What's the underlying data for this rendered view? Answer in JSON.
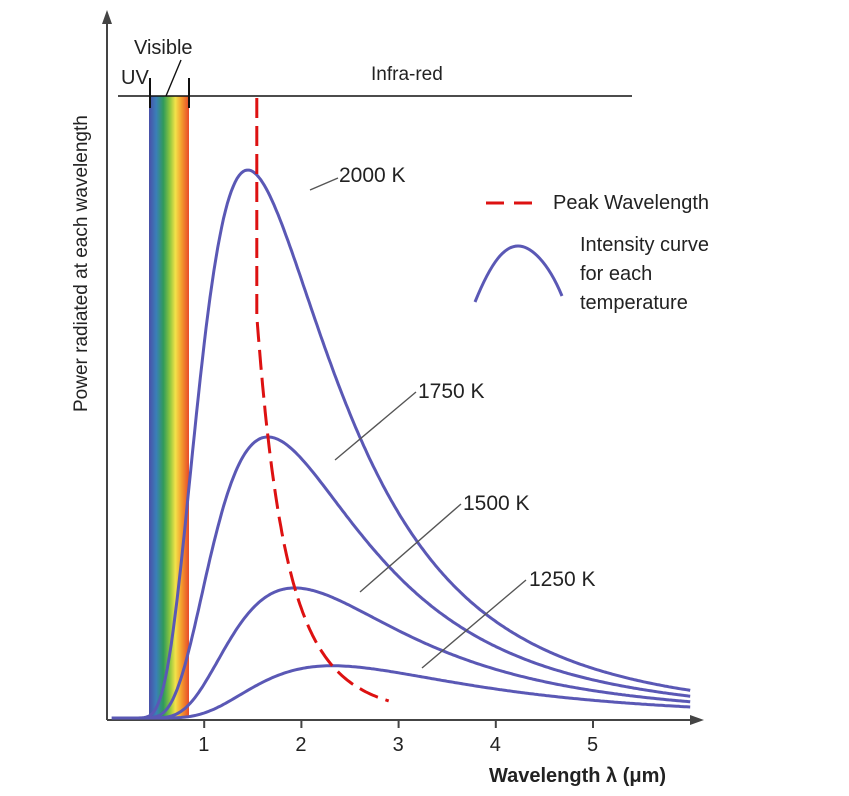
{
  "chart_data": {
    "type": "line",
    "title": "",
    "xlabel": "Wavelength λ (μm)",
    "ylabel": "Power radiated at each wavelength",
    "xlim": [
      0,
      6
    ],
    "ylim": [
      0,
      1.1
    ],
    "x_ticks": [
      "1",
      "2",
      "3",
      "4",
      "5"
    ],
    "x_tick_values": [
      1,
      2,
      3,
      4,
      5
    ],
    "grid": false,
    "bands": [
      {
        "label": "UV",
        "from": 0.0,
        "to": 0.38
      },
      {
        "label": "Visible",
        "from": 0.38,
        "to": 0.75
      },
      {
        "label": "Infra-red",
        "from": 0.75,
        "to": 5.5
      }
    ],
    "series": [
      {
        "name": "2000 K",
        "temperature": 2000
      },
      {
        "name": "1750 K",
        "temperature": 1750
      },
      {
        "name": "1500 K",
        "temperature": 1500
      },
      {
        "name": "1250 K",
        "temperature": 1250
      }
    ],
    "peak_curve": {
      "label": "Peak Wavelength",
      "color": "#dd1111"
    },
    "legend": {
      "placement": "top-right",
      "peak_label": "Peak Wavelength",
      "intensity_lines": [
        "Intensity curve",
        "for each",
        "temperature"
      ]
    },
    "colors": {
      "curve": "#5a58b5",
      "peak": "#dd1111",
      "axis": "#444444"
    }
  }
}
